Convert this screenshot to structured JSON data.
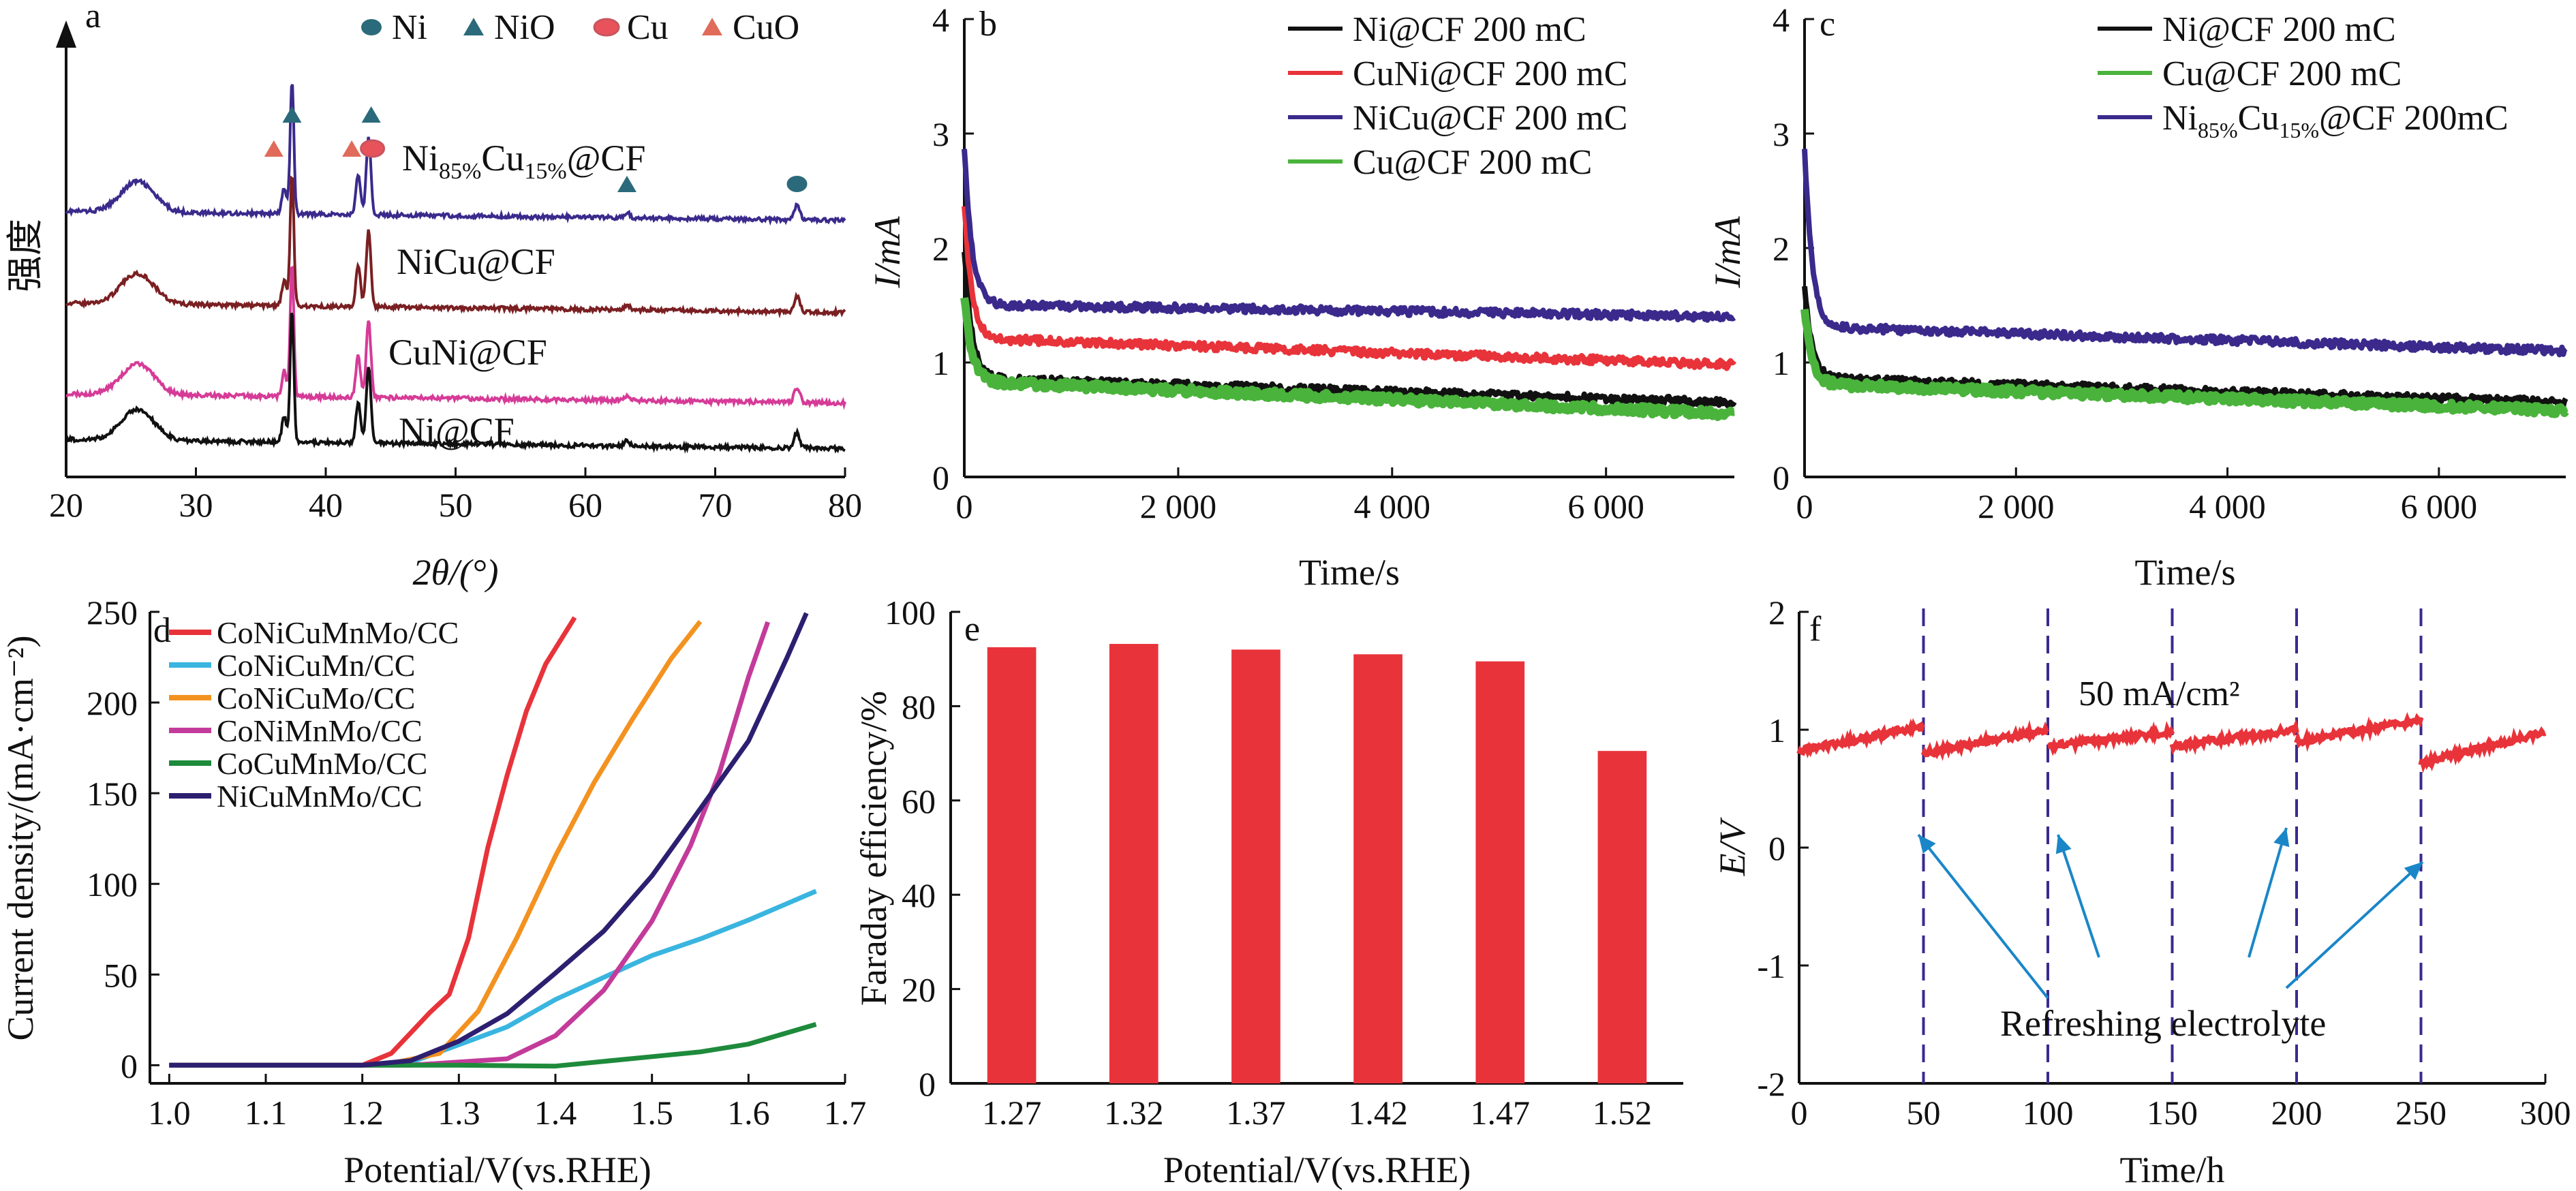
{
  "colors": {
    "axis": "#111111",
    "purple": "#3b2a8c",
    "red": "#e8333a",
    "green": "#4ab33b",
    "black": "#111111",
    "maroon": "#7a1f22",
    "magenta": "#d63b97",
    "cyan": "#39b5df",
    "orange": "#f39220",
    "pink": "#c33b9a",
    "dkgreen": "#1e8a3b",
    "navy": "#2d1f70",
    "ni_marker": "#2b6a7a",
    "nio_marker": "#2b6a7a",
    "cu_marker": "#e8525a",
    "cuo_marker": "#e06b5a",
    "dashed": "#3a2a8f",
    "arrow": "#1a86c8"
  },
  "chart_data": [
    {
      "panel": "a",
      "type": "line",
      "xlabel": "2θ/(°)",
      "ylabel": "强度",
      "xlim": [
        20,
        80
      ],
      "x_ticks": [
        "20",
        "30",
        "40",
        "50",
        "60",
        "70",
        "80"
      ],
      "legend": [
        {
          "name": "Ni",
          "marker": "circle",
          "color_key": "ni_marker"
        },
        {
          "name": "NiO",
          "marker": "triangle",
          "color_key": "nio_marker"
        },
        {
          "name": "Cu",
          "marker": "ellipse",
          "color_key": "cu_marker"
        },
        {
          "name": "CuO",
          "marker": "triangle",
          "color_key": "cuo_marker"
        }
      ],
      "series": [
        {
          "name": "Ni85%Cu15%@CF",
          "label_main": "Ni",
          "label_sub1": "85%",
          "label_mid": "Cu",
          "label_sub2": "15%",
          "label_end": "@CF",
          "color_key": "purple",
          "offset": 3
        },
        {
          "name": "NiCu@CF",
          "label_main": "NiCu@CF",
          "color_key": "maroon",
          "offset": 2
        },
        {
          "name": "CuNi@CF",
          "label_main": "CuNi@CF",
          "color_key": "magenta",
          "offset": 1
        },
        {
          "name": "Ni@CF",
          "label_main": "Ni@CF",
          "color_key": "black",
          "offset": 0
        }
      ],
      "peaks": [
        {
          "x": 25.5,
          "height": 0.3,
          "width": 1.8
        },
        {
          "x": 36.8,
          "height": 0.25,
          "width": 0.25
        },
        {
          "x": 37.4,
          "height": 1.3,
          "width": 0.2
        },
        {
          "x": 42.5,
          "height": 0.4,
          "width": 0.25
        },
        {
          "x": 43.3,
          "height": 0.75,
          "width": 0.25
        },
        {
          "x": 63.2,
          "height": 0.05,
          "width": 0.3
        },
        {
          "x": 76.3,
          "height": 0.15,
          "width": 0.3
        }
      ],
      "markers": [
        {
          "x": 37.4,
          "kind": "NiO",
          "level": "top"
        },
        {
          "x": 43.5,
          "kind": "NiO",
          "level": "top"
        },
        {
          "x": 36.0,
          "kind": "CuO",
          "level": "mid"
        },
        {
          "x": 42.0,
          "kind": "CuO",
          "level": "mid"
        },
        {
          "x": 43.6,
          "kind": "Cu",
          "level": "mid"
        },
        {
          "x": 63.2,
          "kind": "NiO",
          "level": "low"
        },
        {
          "x": 76.3,
          "kind": "Ni",
          "level": "low"
        }
      ]
    },
    {
      "panel": "b",
      "type": "line",
      "xlabel": "Time/s",
      "ylabel": "I/mA",
      "xlim": [
        0,
        7200
      ],
      "ylim": [
        0,
        4
      ],
      "x_ticks": [
        "0",
        "2 000",
        "4 000",
        "6 000"
      ],
      "y_ticks": [
        "0",
        "1",
        "2",
        "3",
        "4"
      ],
      "series": [
        {
          "name": "Ni@CF 200 mC",
          "color_key": "black",
          "y0": 2.0,
          "ystable": 0.85,
          "yend": 0.65
        },
        {
          "name": "CuNi@CF 200 mC",
          "color_key": "red",
          "y0": 2.4,
          "ystable": 1.2,
          "yend": 0.98
        },
        {
          "name": "NiCu@CF 200 mC",
          "color_key": "purple",
          "y0": 2.9,
          "ystable": 1.5,
          "yend": 1.4
        },
        {
          "name": "Cu@CF 200 mC",
          "color_key": "green",
          "y0": 1.6,
          "ystable": 0.82,
          "yend": 0.55
        }
      ]
    },
    {
      "panel": "c",
      "type": "line",
      "xlabel": "Time/s",
      "ylabel": "I/mA",
      "xlim": [
        0,
        7200
      ],
      "ylim": [
        0,
        4
      ],
      "x_ticks": [
        "0",
        "2 000",
        "4 000",
        "6 000"
      ],
      "y_ticks": [
        "0",
        "1",
        "2",
        "3",
        "4"
      ],
      "series": [
        {
          "name": "Ni@CF 200 mC",
          "color_key": "black",
          "y0": 1.7,
          "ystable": 0.85,
          "yend": 0.65
        },
        {
          "name": "Cu@CF 200 mC",
          "color_key": "green",
          "y0": 1.5,
          "ystable": 0.8,
          "yend": 0.58
        },
        {
          "name": "Ni85%Cu15%@CF 200mC",
          "label_main": "Ni",
          "label_sub1": "85%",
          "label_mid": "Cu",
          "label_sub2": "15%",
          "label_end": "@CF 200mC",
          "color_key": "purple",
          "y0": 2.9,
          "ystable": 1.3,
          "yend": 1.1
        }
      ]
    },
    {
      "panel": "d",
      "type": "line",
      "xlabel": "Potential/V(vs.RHE)",
      "ylabel": "Current density/(mA·cm⁻²)",
      "xlim": [
        0.98,
        1.7
      ],
      "ylim": [
        -10,
        250
      ],
      "x_ticks": [
        "1.0",
        "1.1",
        "1.2",
        "1.3",
        "1.4",
        "1.5",
        "1.6",
        "1.7"
      ],
      "y_ticks": [
        "0",
        "50",
        "100",
        "150",
        "200",
        "250"
      ],
      "series": [
        {
          "name": "CoNiCuMnMo/CC",
          "color_key": "red",
          "points": [
            [
              1.0,
              0
            ],
            [
              1.2,
              0
            ],
            [
              1.23,
              8
            ],
            [
              1.25,
              18
            ],
            [
              1.27,
              28
            ],
            [
              1.29,
              40
            ],
            [
              1.31,
              70
            ],
            [
              1.33,
              120
            ],
            [
              1.35,
              160
            ],
            [
              1.37,
              195
            ],
            [
              1.39,
              220
            ],
            [
              1.42,
              248
            ]
          ]
        },
        {
          "name": "CoNiCuMn/CC",
          "color_key": "cyan",
          "points": [
            [
              1.0,
              0
            ],
            [
              1.2,
              0
            ],
            [
              1.25,
              3
            ],
            [
              1.3,
              10
            ],
            [
              1.35,
              22
            ],
            [
              1.4,
              35
            ],
            [
              1.45,
              48
            ],
            [
              1.5,
              60
            ],
            [
              1.55,
              70
            ],
            [
              1.6,
              80
            ],
            [
              1.67,
              95
            ]
          ]
        },
        {
          "name": "CoNiCuMo/CC",
          "color_key": "orange",
          "points": [
            [
              1.0,
              0
            ],
            [
              1.22,
              0
            ],
            [
              1.28,
              8
            ],
            [
              1.32,
              30
            ],
            [
              1.36,
              70
            ],
            [
              1.4,
              115
            ],
            [
              1.44,
              155
            ],
            [
              1.48,
              190
            ],
            [
              1.52,
              225
            ],
            [
              1.55,
              245
            ]
          ]
        },
        {
          "name": "CoNiMnMo/CC",
          "color_key": "pink",
          "points": [
            [
              1.0,
              0
            ],
            [
              1.25,
              0
            ],
            [
              1.35,
              5
            ],
            [
              1.4,
              15
            ],
            [
              1.45,
              40
            ],
            [
              1.5,
              80
            ],
            [
              1.54,
              120
            ],
            [
              1.57,
              160
            ],
            [
              1.6,
              215
            ],
            [
              1.62,
              245
            ]
          ]
        },
        {
          "name": "CoCuMnMo/CC",
          "color_key": "dkgreen",
          "points": [
            [
              1.0,
              0
            ],
            [
              1.3,
              0
            ],
            [
              1.4,
              1
            ],
            [
              1.5,
              5
            ],
            [
              1.55,
              8
            ],
            [
              1.6,
              13
            ],
            [
              1.67,
              24
            ]
          ]
        },
        {
          "name": "NiCuMnMo/CC",
          "color_key": "navy",
          "points": [
            [
              1.0,
              0
            ],
            [
              1.2,
              0
            ],
            [
              1.25,
              4
            ],
            [
              1.3,
              12
            ],
            [
              1.35,
              28
            ],
            [
              1.4,
              50
            ],
            [
              1.45,
              75
            ],
            [
              1.5,
              105
            ],
            [
              1.55,
              140
            ],
            [
              1.6,
              180
            ],
            [
              1.64,
              225
            ],
            [
              1.66,
              248
            ]
          ]
        }
      ]
    },
    {
      "panel": "e",
      "type": "bar",
      "xlabel": "Potential/V(vs.RHE)",
      "ylabel": "Faraday efficiency/%",
      "ylim": [
        0,
        100
      ],
      "y_ticks": [
        "0",
        "20",
        "40",
        "60",
        "80",
        "100"
      ],
      "categories": [
        "1.27",
        "1.32",
        "1.37",
        "1.42",
        "1.47",
        "1.52"
      ],
      "values": [
        92.5,
        93.2,
        92.0,
        91.0,
        89.5,
        70.5
      ],
      "color_key": "red"
    },
    {
      "panel": "f",
      "type": "line",
      "xlabel": "Time/h",
      "ylabel": "E/V",
      "xlim": [
        0,
        300
      ],
      "ylim": [
        -2,
        2
      ],
      "x_ticks": [
        "0",
        "50",
        "100",
        "150",
        "200",
        "250",
        "300"
      ],
      "y_ticks": [
        "-2",
        "-1",
        "0",
        "1",
        "2"
      ],
      "annotation": "50 mA/cm²",
      "arrow_label": "Refreshing electrolyte",
      "refresh_times": [
        50,
        100,
        150,
        200,
        250
      ],
      "series": [
        {
          "name": "E",
          "color_key": "red",
          "segments": [
            [
              0,
              0.82,
              50,
              1.03
            ],
            [
              50,
              0.8,
              100,
              1.0
            ],
            [
              100,
              0.86,
              150,
              0.98
            ],
            [
              150,
              0.86,
              200,
              1.0
            ],
            [
              200,
              0.9,
              250,
              1.08
            ],
            [
              250,
              0.72,
              300,
              0.98
            ]
          ]
        }
      ]
    }
  ]
}
